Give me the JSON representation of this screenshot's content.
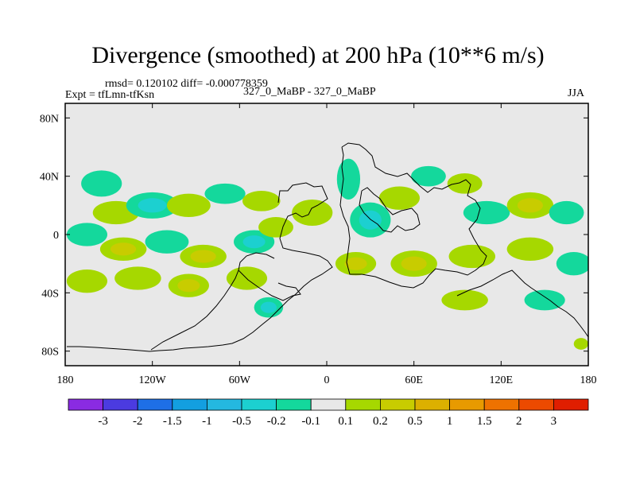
{
  "chart_data": {
    "type": "heatmap",
    "title": "Divergence (smoothed) at 200 hPa (10**6 m/s)",
    "stats_line": "rmsd= 0.120102 diff= -0.000778359",
    "left_label": "Expt = tfLmn-tfKsn",
    "center_label": "327_0_MaBP - 327_0_MaBP",
    "right_label": "JJA",
    "x_ticks": [
      {
        "value": -180,
        "label": "180"
      },
      {
        "value": -120,
        "label": "120W"
      },
      {
        "value": -60,
        "label": "60W"
      },
      {
        "value": 0,
        "label": "0"
      },
      {
        "value": 60,
        "label": "60E"
      },
      {
        "value": 120,
        "label": "120E"
      },
      {
        "value": 180,
        "label": "180"
      }
    ],
    "y_ticks": [
      {
        "value": 80,
        "label": "80N"
      },
      {
        "value": 40,
        "label": "40N"
      },
      {
        "value": 0,
        "label": "0"
      },
      {
        "value": -40,
        "label": "40S"
      },
      {
        "value": -80,
        "label": "80S"
      }
    ],
    "xlim": [
      -180,
      180
    ],
    "ylim": [
      -90,
      90
    ],
    "colorbar": {
      "colors": [
        "#8a2be2",
        "#4b3be0",
        "#1e6fe6",
        "#139fe0",
        "#24b8e0",
        "#1cd0d0",
        "#14d89c",
        "#e8e8e8",
        "#a6d800",
        "#c8cc00",
        "#dcb000",
        "#e89a00",
        "#ee7200",
        "#ec4a00",
        "#e01e00"
      ],
      "labels": [
        "-3",
        "-2",
        "-1.5",
        "-1",
        "-0.5",
        "-0.2",
        "-0.1",
        "0.1",
        "0.2",
        "0.5",
        "1",
        "1.5",
        "2",
        "3"
      ]
    },
    "blobs": [
      {
        "lon": -155,
        "lat": 35,
        "rx": 14,
        "ry": 9,
        "level": -1
      },
      {
        "lon": -145,
        "lat": 15,
        "rx": 16,
        "ry": 8,
        "level": 1
      },
      {
        "lon": -120,
        "lat": 20,
        "rx": 18,
        "ry": 9,
        "level": -2
      },
      {
        "lon": -95,
        "lat": 20,
        "rx": 15,
        "ry": 8,
        "level": 1
      },
      {
        "lon": -70,
        "lat": 28,
        "rx": 14,
        "ry": 7,
        "level": -1
      },
      {
        "lon": -45,
        "lat": 23,
        "rx": 13,
        "ry": 7,
        "level": 1
      },
      {
        "lon": -165,
        "lat": 0,
        "rx": 14,
        "ry": 8,
        "level": -1
      },
      {
        "lon": -140,
        "lat": -10,
        "rx": 16,
        "ry": 8,
        "level": 2
      },
      {
        "lon": -110,
        "lat": -5,
        "rx": 15,
        "ry": 8,
        "level": -1
      },
      {
        "lon": -85,
        "lat": -15,
        "rx": 16,
        "ry": 8,
        "level": 2
      },
      {
        "lon": -50,
        "lat": -5,
        "rx": 14,
        "ry": 8,
        "level": -2
      },
      {
        "lon": -35,
        "lat": 5,
        "rx": 12,
        "ry": 7,
        "level": 1
      },
      {
        "lon": -165,
        "lat": -32,
        "rx": 14,
        "ry": 8,
        "level": 1
      },
      {
        "lon": -130,
        "lat": -30,
        "rx": 16,
        "ry": 8,
        "level": 1
      },
      {
        "lon": -95,
        "lat": -35,
        "rx": 14,
        "ry": 8,
        "level": 2
      },
      {
        "lon": -55,
        "lat": -30,
        "rx": 14,
        "ry": 8,
        "level": 1
      },
      {
        "lon": -40,
        "lat": -50,
        "rx": 10,
        "ry": 7,
        "level": -2
      },
      {
        "lon": -10,
        "lat": 15,
        "rx": 14,
        "ry": 9,
        "level": 1
      },
      {
        "lon": 15,
        "lat": 38,
        "rx": 8,
        "ry": 14,
        "level": -1
      },
      {
        "lon": 30,
        "lat": 10,
        "rx": 14,
        "ry": 12,
        "level": -2
      },
      {
        "lon": 50,
        "lat": 25,
        "rx": 14,
        "ry": 8,
        "level": 1
      },
      {
        "lon": 20,
        "lat": -20,
        "rx": 14,
        "ry": 8,
        "level": 2
      },
      {
        "lon": 60,
        "lat": -20,
        "rx": 16,
        "ry": 9,
        "level": 2
      },
      {
        "lon": 70,
        "lat": 40,
        "rx": 12,
        "ry": 7,
        "level": -1
      },
      {
        "lon": 95,
        "lat": 35,
        "rx": 12,
        "ry": 7,
        "level": 1
      },
      {
        "lon": 110,
        "lat": 15,
        "rx": 16,
        "ry": 8,
        "level": -1
      },
      {
        "lon": 140,
        "lat": 20,
        "rx": 16,
        "ry": 9,
        "level": 2
      },
      {
        "lon": 165,
        "lat": 15,
        "rx": 12,
        "ry": 8,
        "level": -1
      },
      {
        "lon": 100,
        "lat": -15,
        "rx": 16,
        "ry": 8,
        "level": 1
      },
      {
        "lon": 140,
        "lat": -10,
        "rx": 16,
        "ry": 8,
        "level": 1
      },
      {
        "lon": 170,
        "lat": -20,
        "rx": 12,
        "ry": 8,
        "level": -1
      },
      {
        "lon": 95,
        "lat": -45,
        "rx": 16,
        "ry": 7,
        "level": 1
      },
      {
        "lon": 150,
        "lat": -45,
        "rx": 14,
        "ry": 7,
        "level": -1
      },
      {
        "lon": 175,
        "lat": -75,
        "rx": 5,
        "ry": 4,
        "level": 1
      }
    ]
  }
}
